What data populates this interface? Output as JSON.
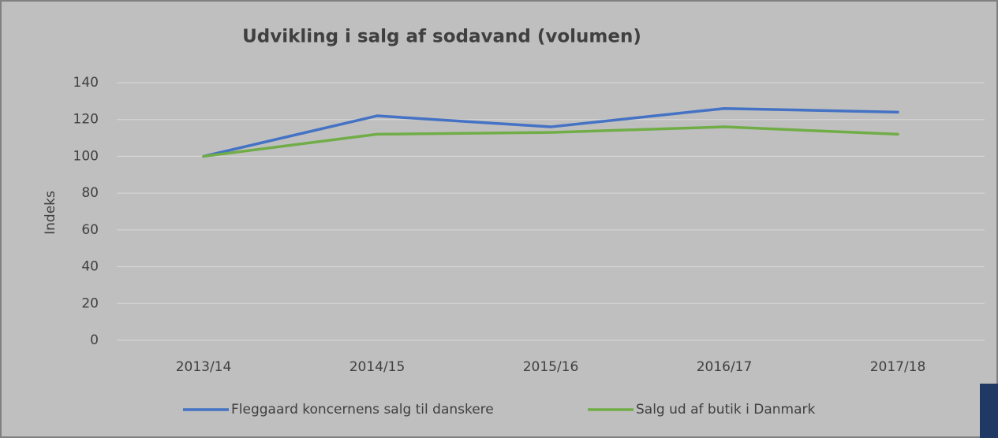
{
  "chart_data": {
    "type": "line",
    "title": "Udvikling i salg af sodavand  (volumen)",
    "y_label": "Indeks",
    "categories": [
      "2013/14",
      "2014/15",
      "2015/16",
      "2016/17",
      "2017/18"
    ],
    "series": [
      {
        "name": "Fleggaard koncernens salg til danskere",
        "color": "#4472c4",
        "values": [
          100,
          122,
          116,
          126,
          124
        ]
      },
      {
        "name": "Salg ud af butik i Danmark",
        "color": "#70ad47",
        "values": [
          100,
          112,
          113,
          116,
          112
        ]
      }
    ],
    "ylim": [
      0,
      140
    ],
    "yticks": [
      0,
      20,
      40,
      60,
      80,
      100,
      120,
      140
    ],
    "grid": true,
    "legend": "bottom"
  }
}
